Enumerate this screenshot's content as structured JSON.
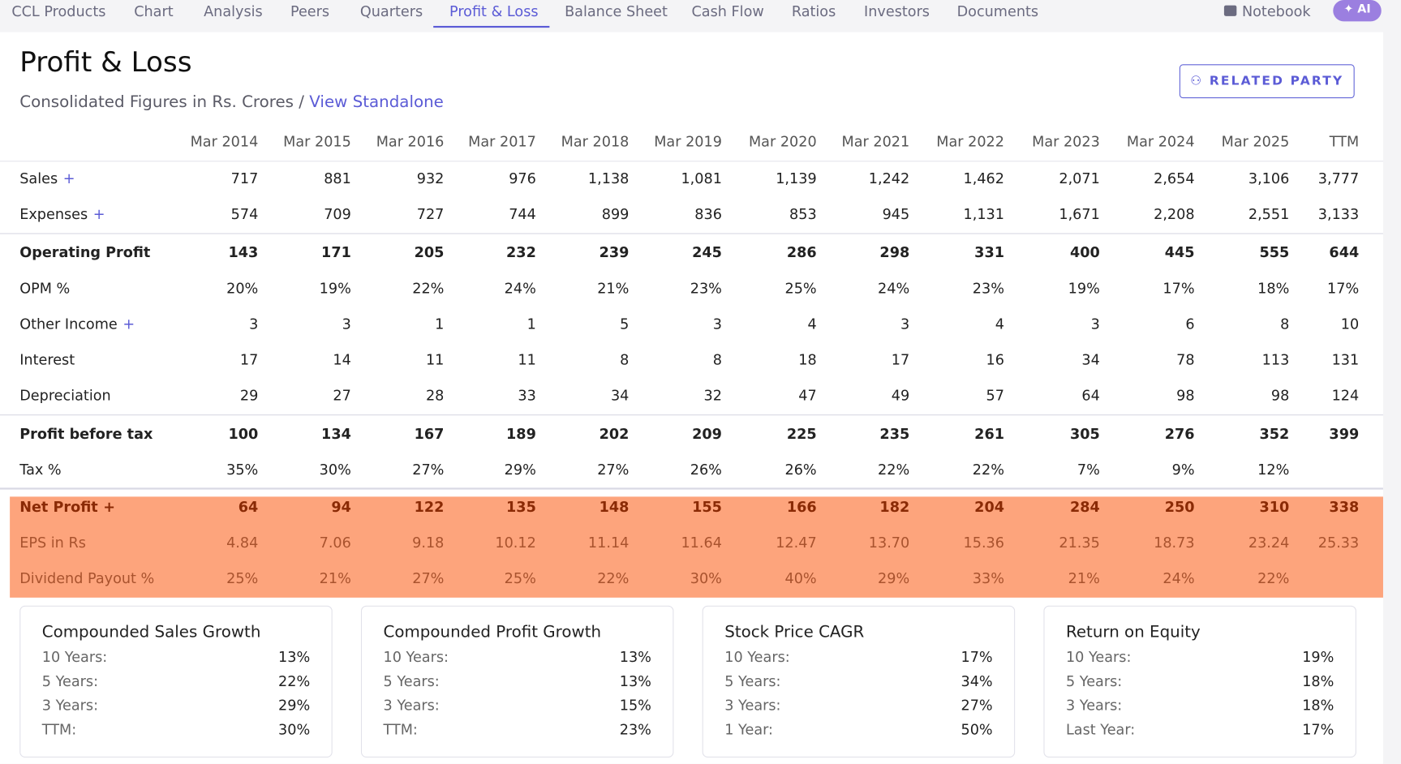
{
  "nav": {
    "items": [
      "CCL Products",
      "Chart",
      "Analysis",
      "Peers",
      "Quarters",
      "Profit & Loss",
      "Balance Sheet",
      "Cash Flow",
      "Ratios",
      "Investors",
      "Documents"
    ],
    "active_tab": 5,
    "notebook": "Notebook",
    "ai": "AI"
  },
  "header": {
    "title": "Profit & Loss",
    "subtitle": "Consolidated Figures in Rs. Crores /",
    "link": "View Standalone",
    "button": "RELATED PARTY"
  },
  "table": {
    "columns": [
      "Mar 2014",
      "Mar 2015",
      "Mar 2016",
      "Mar 2017",
      "Mar 2018",
      "Mar 2019",
      "Mar 2020",
      "Mar 2021",
      "Mar 2022",
      "Mar 2023",
      "Mar 2024",
      "Mar 2025",
      "TTM"
    ],
    "rows": [
      {
        "label": "Sales",
        "toggle": "+",
        "values": [
          "717",
          "881",
          "932",
          "976",
          "1,138",
          "1,081",
          "1,139",
          "1,242",
          "1,462",
          "2,071",
          "2,654",
          "3,106",
          "3,777"
        ]
      },
      {
        "label": "Expenses",
        "toggle": "+",
        "values": [
          "574",
          "709",
          "727",
          "744",
          "899",
          "836",
          "853",
          "945",
          "1,131",
          "1,671",
          "2,208",
          "2,551",
          "3,133"
        ]
      },
      {
        "label": "Operating Profit",
        "bold": true,
        "border_top": true,
        "values": [
          "143",
          "171",
          "205",
          "232",
          "239",
          "245",
          "286",
          "298",
          "331",
          "400",
          "445",
          "555",
          "644"
        ]
      },
      {
        "label": "OPM %",
        "values": [
          "20%",
          "19%",
          "22%",
          "24%",
          "21%",
          "23%",
          "25%",
          "24%",
          "23%",
          "19%",
          "17%",
          "18%",
          "17%"
        ]
      },
      {
        "label": "Other Income",
        "toggle": "+",
        "values": [
          "3",
          "3",
          "1",
          "1",
          "5",
          "3",
          "4",
          "3",
          "4",
          "3",
          "6",
          "8",
          "10"
        ]
      },
      {
        "label": "Interest",
        "values": [
          "17",
          "14",
          "11",
          "11",
          "8",
          "8",
          "18",
          "17",
          "16",
          "34",
          "78",
          "113",
          "131"
        ]
      },
      {
        "label": "Depreciation",
        "values": [
          "29",
          "27",
          "28",
          "33",
          "34",
          "32",
          "47",
          "49",
          "57",
          "64",
          "98",
          "98",
          "124"
        ]
      },
      {
        "label": "Profit before tax",
        "bold": true,
        "border_top": true,
        "values": [
          "100",
          "134",
          "167",
          "189",
          "202",
          "209",
          "225",
          "235",
          "261",
          "305",
          "276",
          "352",
          "399"
        ]
      },
      {
        "label": "Tax %",
        "values": [
          "35%",
          "30%",
          "27%",
          "29%",
          "27%",
          "26%",
          "26%",
          "22%",
          "22%",
          "7%",
          "9%",
          "12%",
          null
        ]
      },
      {
        "label": "Net Profit",
        "toggle": "+",
        "bold": true,
        "border_top": true,
        "highlight": true,
        "values": [
          "64",
          "94",
          "122",
          "135",
          "148",
          "155",
          "166",
          "182",
          "204",
          "284",
          "250",
          "310",
          "338"
        ]
      },
      {
        "label": "EPS in Rs",
        "highlight": true,
        "values": [
          "4.84",
          "7.06",
          "9.18",
          "10.12",
          "11.14",
          "11.64",
          "12.47",
          "13.70",
          "15.36",
          "21.35",
          "18.73",
          "23.24",
          "25.33"
        ]
      },
      {
        "label": "Dividend Payout %",
        "highlight": true,
        "values": [
          "25%",
          "21%",
          "27%",
          "25%",
          "22%",
          "30%",
          "40%",
          "29%",
          "33%",
          "21%",
          "24%",
          "22%",
          null
        ]
      }
    ]
  },
  "cards": [
    {
      "title": "Compounded Sales Growth",
      "rows": [
        [
          "10 Years:",
          "13%"
        ],
        [
          "5 Years:",
          "22%"
        ],
        [
          "3 Years:",
          "29%"
        ],
        [
          "TTM:",
          "30%"
        ]
      ]
    },
    {
      "title": "Compounded Profit Growth",
      "rows": [
        [
          "10 Years:",
          "13%"
        ],
        [
          "5 Years:",
          "13%"
        ],
        [
          "3 Years:",
          "15%"
        ],
        [
          "TTM:",
          "23%"
        ]
      ]
    },
    {
      "title": "Stock Price CAGR",
      "rows": [
        [
          "10 Years:",
          "17%"
        ],
        [
          "5 Years:",
          "34%"
        ],
        [
          "3 Years:",
          "27%"
        ],
        [
          "1 Year:",
          "50%"
        ]
      ]
    },
    {
      "title": "Return on Equity",
      "rows": [
        [
          "10 Years:",
          "19%"
        ],
        [
          "5 Years:",
          "18%"
        ],
        [
          "3 Years:",
          "18%"
        ],
        [
          "Last Year:",
          "17%"
        ]
      ]
    }
  ]
}
